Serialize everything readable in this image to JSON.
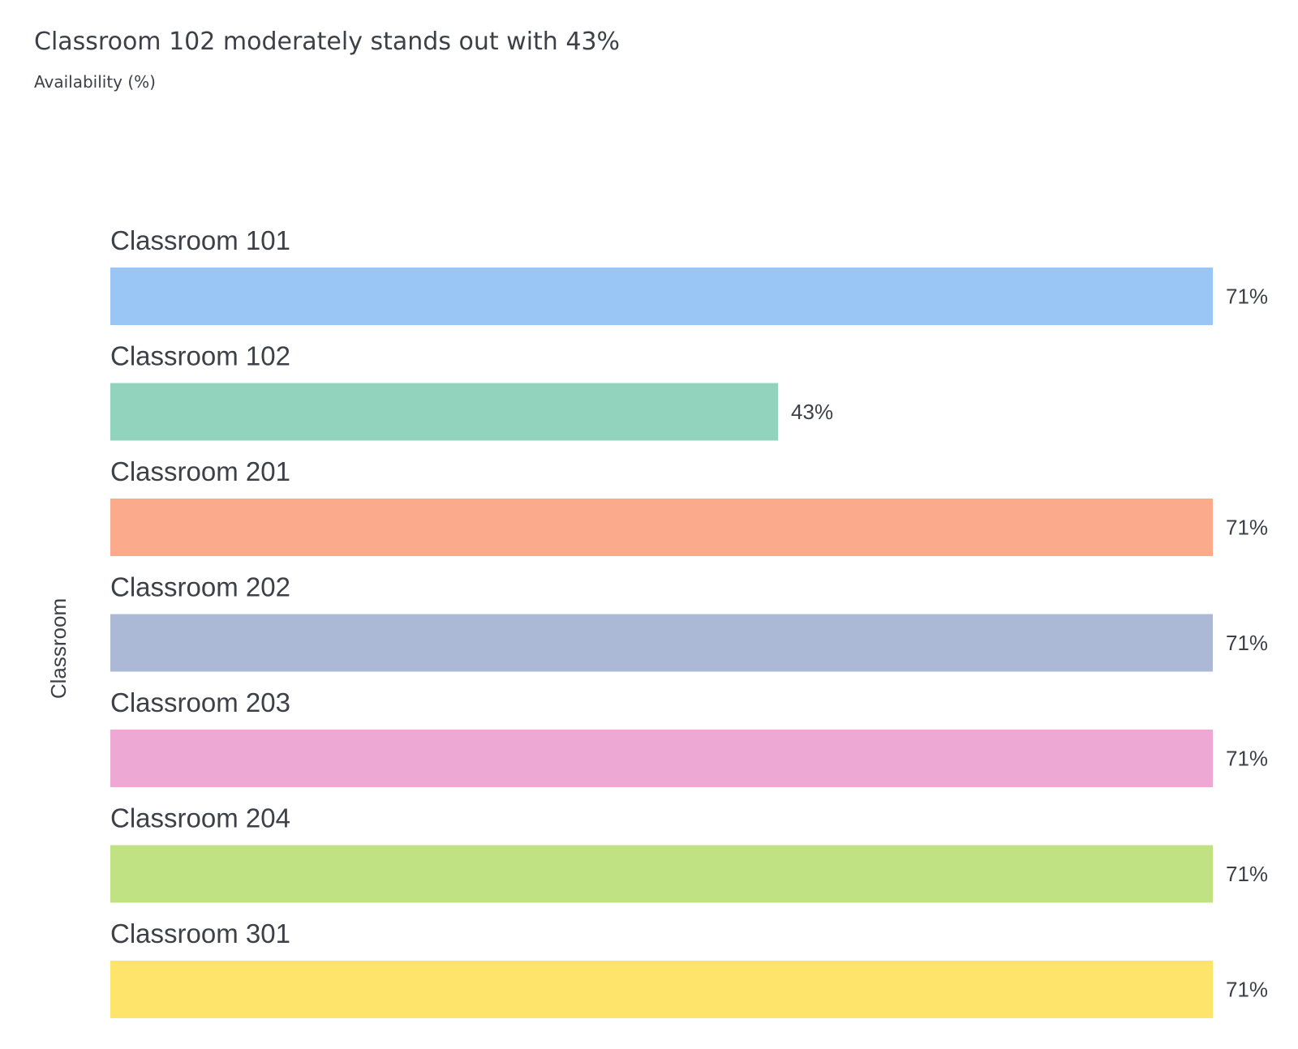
{
  "header": {
    "title": "Classroom 102 moderately stands out with 43%",
    "subtitle": "Availability (%)"
  },
  "chart_data": {
    "type": "bar",
    "orientation": "horizontal",
    "title": "Classroom 102 moderately stands out with 43%",
    "subtitle": "Availability (%)",
    "ylabel": "Classroom",
    "xlabel": "",
    "xlim": [
      0,
      71
    ],
    "grid": false,
    "value_suffix": "%",
    "categories": [
      "Classroom 101",
      "Classroom 102",
      "Classroom 201",
      "Classroom 202",
      "Classroom 203",
      "Classroom 204",
      "Classroom 301"
    ],
    "values": [
      71,
      43,
      71,
      71,
      71,
      71,
      71
    ],
    "colors": [
      "#99c6f5",
      "#92d3bd",
      "#fbab8b",
      "#abb9d7",
      "#eda9d3",
      "#c0e283",
      "#fee46a"
    ]
  }
}
